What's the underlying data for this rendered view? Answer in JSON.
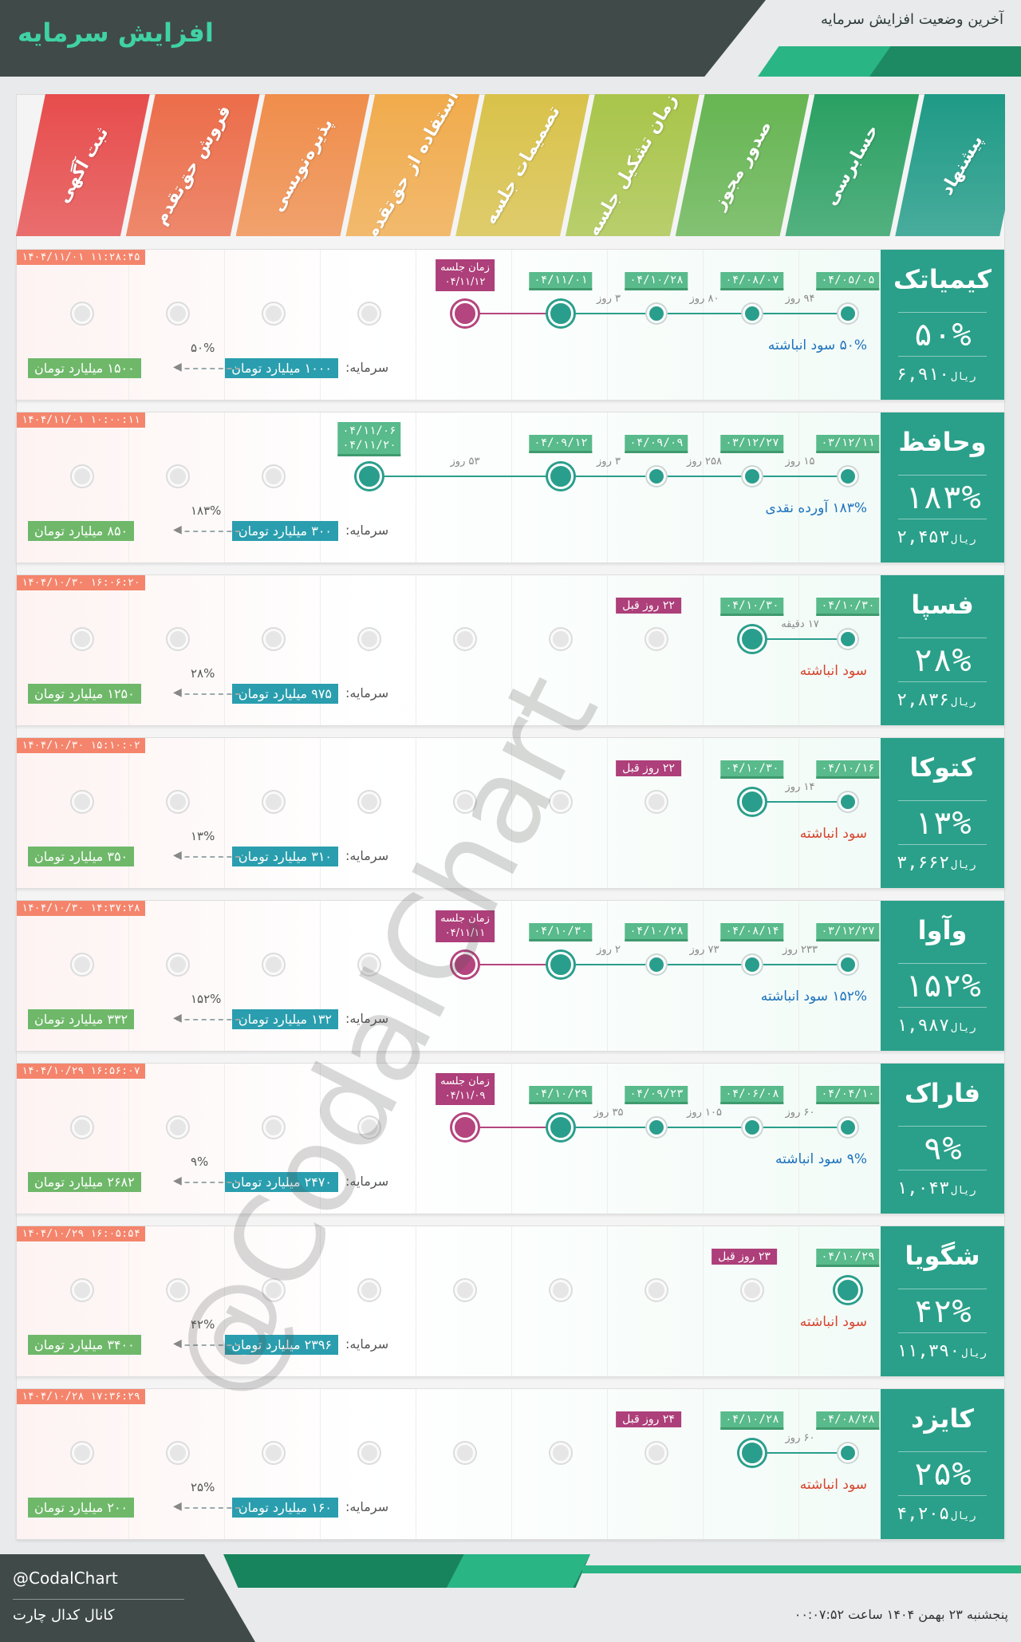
{
  "header": {
    "title": "افزایش سرمایه",
    "subtitle": "آخرین وضعیت افزایش سرمایه"
  },
  "stages": [
    {
      "label": "ثبت آگهی",
      "color": "#e74c4c"
    },
    {
      "label": "فروش حق‌تقدم",
      "color": "#ec6d4a"
    },
    {
      "label": "پذیره‌نویسی",
      "color": "#f08d4b"
    },
    {
      "label": "استفاده از حق‌تقدم",
      "color": "#f1ab4c"
    },
    {
      "label": "تصمیمات جلسه",
      "color": "#d9c24a"
    },
    {
      "label": "زمان تشکیل جلسه",
      "color": "#a9c54a"
    },
    {
      "label": "صدور مجوز",
      "color": "#66b552"
    },
    {
      "label": "حسابرسی",
      "color": "#2aa062"
    },
    {
      "label": "پیشنهاد",
      "color": "#1e9a86"
    }
  ],
  "colors": {
    "accent": "#2aa08a",
    "meeting": "#ad3f7a",
    "date_tag": "#59ba8c",
    "capital_old": "#2a9eae",
    "capital_new": "#6fb86a",
    "timestamp": "#f4856c"
  },
  "rows": [
    {
      "name": "کیمیاتک",
      "percent": "۵۰%",
      "price": "۶,۹۱۰",
      "rial": "ریال",
      "timestamp": "۱۴۰۴/۱۱/۰۱ ۱۱:۲۸:۴۵",
      "dates": [
        "۰۴/۰۵/۰۵",
        "۰۴/۰۸/۰۷",
        "۰۴/۱۰/۲۸",
        "۰۴/۱۱/۰۱"
      ],
      "gaps": [
        "۹۴ روز",
        "۸۰ روز",
        "۳ روز"
      ],
      "meeting": [
        "زمان جلسه",
        "۰۴/۱۱/۱۲"
      ],
      "ago": "",
      "note": "۵۰% سود انباشته",
      "note_color": "#1e73be",
      "capital_label": "سرمایه:",
      "capital_old": "۱۰۰۰ میلیارد تومان",
      "capital_pct": "۵۰%",
      "capital_new": "۱۵۰۰ میلیارد تومان"
    },
    {
      "name": "وحافظ",
      "percent": "۱۸۳%",
      "price": "۲,۴۵۳",
      "rial": "ریال",
      "timestamp": "۱۴۰۴/۱۱/۰۱ ۱۰:۰۰:۱۱",
      "dates": [
        "۰۳/۱۲/۱۱",
        "۰۳/۱۲/۲۷",
        "۰۴/۰۹/۰۹",
        "۰۴/۰۹/۱۲"
      ],
      "gaps": [
        "۱۵ روز",
        "۲۵۸ روز",
        "۳ روز",
        "۵۳ روز"
      ],
      "meeting": [],
      "extra_dates": [
        "۰۴/۱۱/۰۶",
        "۰۴/۱۱/۲۰"
      ],
      "ago": "",
      "note": "۱۸۳% آورده نقدی",
      "note_color": "#1e73be",
      "capital_label": "سرمایه:",
      "capital_old": "۳۰۰ میلیارد تومان",
      "capital_pct": "۱۸۳%",
      "capital_new": "۸۵۰ میلیارد تومان"
    },
    {
      "name": "فسپا",
      "percent": "۲۸%",
      "price": "۲,۸۳۶",
      "rial": "ریال",
      "timestamp": "۱۴۰۴/۱۰/۳۰ ۱۶:۰۶:۲۰",
      "dates": [
        "۰۴/۱۰/۳۰",
        "۰۴/۱۰/۳۰"
      ],
      "gaps": [
        "۱۷ دقیقه"
      ],
      "meeting": [],
      "ago": "۲۲ روز قبل",
      "note": "سود انباشته",
      "note_color": "#d6452e",
      "capital_label": "سرمایه:",
      "capital_old": "۹۷۵ میلیارد تومان",
      "capital_pct": "۲۸%",
      "capital_new": "۱۲۵۰ میلیارد تومان"
    },
    {
      "name": "کتوکا",
      "percent": "۱۳%",
      "price": "۳,۶۶۲",
      "rial": "ریال",
      "timestamp": "۱۴۰۴/۱۰/۳۰ ۱۵:۱۰:۰۲",
      "dates": [
        "۰۴/۱۰/۱۶",
        "۰۴/۱۰/۳۰"
      ],
      "gaps": [
        "۱۴ روز"
      ],
      "meeting": [],
      "ago": "۲۲ روز قبل",
      "note": "سود انباشته",
      "note_color": "#d6452e",
      "capital_label": "سرمایه:",
      "capital_old": "۳۱۰ میلیارد تومان",
      "capital_pct": "۱۳%",
      "capital_new": "۳۵۰ میلیارد تومان"
    },
    {
      "name": "وآوا",
      "percent": "۱۵۲%",
      "price": "۱,۹۸۷",
      "rial": "ریال",
      "timestamp": "۱۴۰۴/۱۰/۳۰ ۱۴:۳۷:۲۸",
      "dates": [
        "۰۳/۱۲/۲۷",
        "۰۴/۰۸/۱۴",
        "۰۴/۱۰/۲۸",
        "۰۴/۱۰/۳۰"
      ],
      "gaps": [
        "۲۳۳ روز",
        "۷۳ روز",
        "۲ روز"
      ],
      "meeting": [
        "زمان جلسه",
        "۰۴/۱۱/۱۱"
      ],
      "ago": "",
      "note": "۱۵۲% سود انباشته",
      "note_color": "#1e73be",
      "capital_label": "سرمایه:",
      "capital_old": "۱۳۲ میلیارد تومان",
      "capital_pct": "۱۵۲%",
      "capital_new": "۳۳۲ میلیارد تومان"
    },
    {
      "name": "فاراک",
      "percent": "۹%",
      "price": "۱,۰۴۳",
      "rial": "ریال",
      "timestamp": "۱۴۰۴/۱۰/۲۹ ۱۶:۵۶:۰۷",
      "dates": [
        "۰۴/۰۴/۱۰",
        "۰۴/۰۶/۰۸",
        "۰۴/۰۹/۲۳",
        "۰۴/۱۰/۲۹"
      ],
      "gaps": [
        "۶۰ روز",
        "۱۰۵ روز",
        "۳۵ روز"
      ],
      "meeting": [
        "زمان جلسه",
        "۰۴/۱۱/۰۹"
      ],
      "ago": "",
      "note": "۹% سود انباشته",
      "note_color": "#1e73be",
      "capital_label": "سرمایه:",
      "capital_old": "۲۴۷۰ میلیارد تومان",
      "capital_pct": "۹%",
      "capital_new": "۲۶۸۲ میلیارد تومان"
    },
    {
      "name": "شگویا",
      "percent": "۴۲%",
      "price": "۱۱,۳۹۰",
      "rial": "ریال",
      "timestamp": "۱۴۰۴/۱۰/۲۹ ۱۶:۰۵:۵۴",
      "dates": [
        "۰۴/۱۰/۲۹"
      ],
      "gaps": [],
      "meeting": [],
      "ago": "۲۳ روز قبل",
      "note": "سود انباشته",
      "note_color": "#d6452e",
      "capital_label": "سرمایه:",
      "capital_old": "۲۳۹۶ میلیارد تومان",
      "capital_pct": "۴۲%",
      "capital_new": "۳۴۰۰ میلیارد تومان"
    },
    {
      "name": "کایزد",
      "percent": "۲۵%",
      "price": "۴,۲۰۵",
      "rial": "ریال",
      "timestamp": "۱۴۰۴/۱۰/۲۸ ۱۷:۳۶:۲۹",
      "dates": [
        "۰۴/۰۸/۲۸",
        "۰۴/۱۰/۲۸"
      ],
      "gaps": [
        "۶۰ روز"
      ],
      "meeting": [],
      "ago": "۲۴ روز قبل",
      "note": "سود انباشته",
      "note_color": "#d6452e",
      "capital_label": "سرمایه:",
      "capital_old": "۱۶۰ میلیارد تومان",
      "capital_pct": "۲۵%",
      "capital_new": "۲۰۰ میلیارد تومان"
    }
  ],
  "watermark": "@CodalChart",
  "footer": {
    "handle": "@CodalChart",
    "channel": "کانال کدال چارت",
    "date": "پنجشنبه ۲۳ بهمن ۱۴۰۴ ساعت ۰۰:۰۷:۵۲"
  }
}
